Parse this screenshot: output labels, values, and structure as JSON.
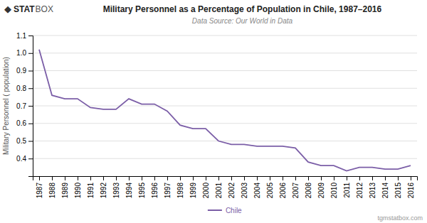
{
  "chart_data": {
    "type": "line",
    "title": "Military Personnel as a Percentage of Population in Chile, 1987–2016",
    "subtitle": "Data Source: Our World in Data",
    "y_label": "Military Personnel ( population)",
    "annotations": [
      "tgmstatbox.com",
      "◆",
      "STAT",
      "BOX"
    ],
    "x": [
      1987,
      1988,
      1989,
      1990,
      1991,
      1992,
      1993,
      1994,
      1995,
      1996,
      1997,
      1998,
      1999,
      2000,
      2001,
      2002,
      2003,
      2004,
      2005,
      2006,
      2007,
      2008,
      2009,
      2010,
      2011,
      2012,
      2013,
      2014,
      2015,
      2016
    ],
    "series": [
      {
        "name": "Chile",
        "color": "#7b5ea7",
        "values": [
          1.02,
          0.76,
          0.74,
          0.74,
          0.69,
          0.68,
          0.68,
          0.74,
          0.71,
          0.71,
          0.67,
          0.59,
          0.57,
          0.57,
          0.5,
          0.48,
          0.48,
          0.47,
          0.47,
          0.47,
          0.46,
          0.38,
          0.36,
          0.36,
          0.33,
          0.35,
          0.35,
          0.34,
          0.34,
          0.36
        ]
      }
    ],
    "xlim": [
      1986.5,
      2016.5
    ],
    "xticks": [
      1987,
      1988,
      1989,
      1990,
      1991,
      1992,
      1993,
      1994,
      1995,
      1996,
      1997,
      1998,
      1999,
      2000,
      2001,
      2002,
      2003,
      2004,
      2005,
      2006,
      2007,
      2008,
      2009,
      2010,
      2011,
      2012,
      2013,
      2014,
      2015,
      2016
    ],
    "ylim": [
      0.3,
      1.1
    ],
    "yticks": [
      0.4,
      0.5,
      0.6,
      0.7,
      0.8,
      0.9,
      {
        "value": 1.0,
        "label": "1.0"
      },
      1.1
    ],
    "grid": true,
    "legend": "bottom"
  }
}
